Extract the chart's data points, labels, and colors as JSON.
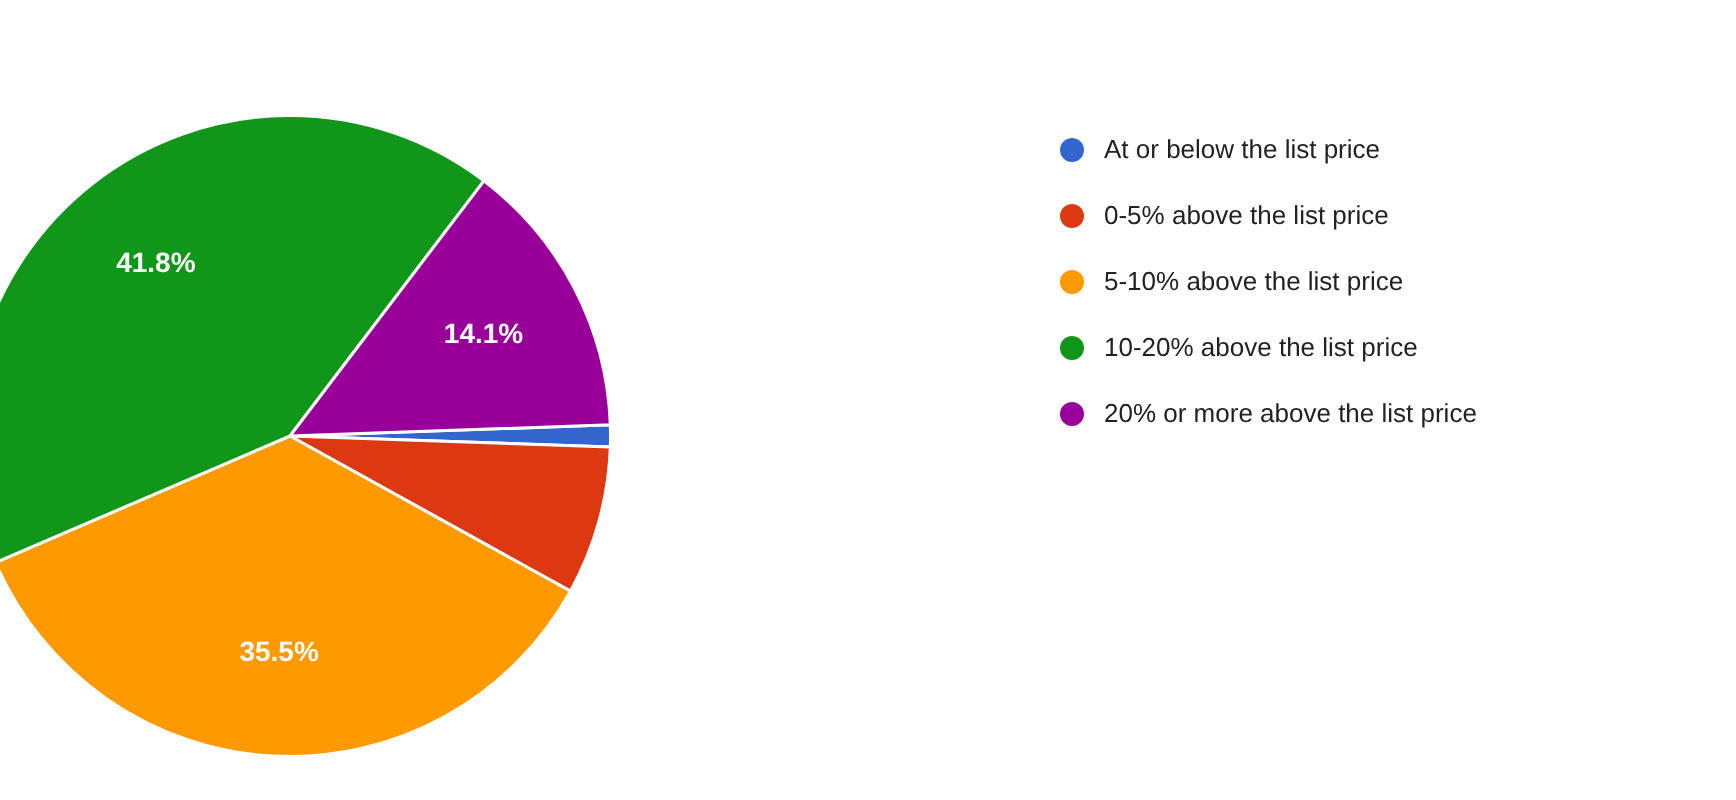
{
  "chart_data": {
    "type": "pie",
    "categories": [
      "At or below the list price",
      "0-5% above the list price",
      "5-10% above the list price",
      "10-20% above the list price",
      "20% or more above the list price"
    ],
    "values": [
      1.1,
      7.5,
      35.5,
      41.8,
      14.1
    ],
    "colors": [
      "#3366cc",
      "#dc3912",
      "#ff9900",
      "#109618",
      "#990099"
    ],
    "value_labels": [
      null,
      null,
      "35.5%",
      "41.8%",
      "14.1%"
    ],
    "legend": "right"
  }
}
